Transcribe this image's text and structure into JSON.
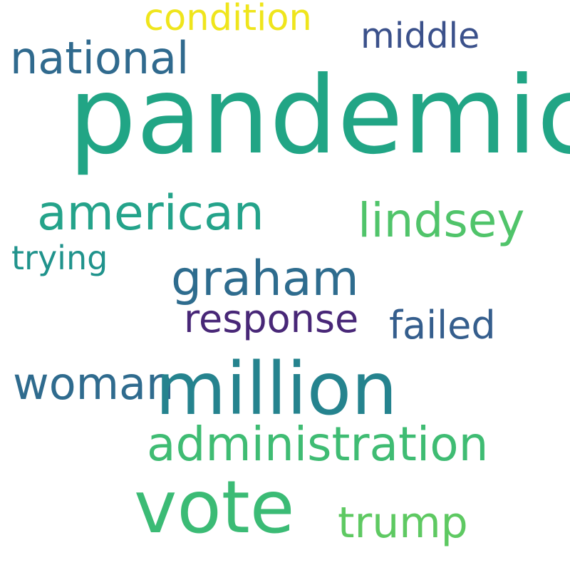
{
  "words": {
    "pandemic": "pandemic",
    "million": "million",
    "vote": "vote",
    "administration": "administration",
    "american": "american",
    "graham": "graham",
    "lindsey": "lindsey",
    "national": "national",
    "woman": "woman",
    "response": "response",
    "failed": "failed",
    "trump": "trump",
    "condition": "condition",
    "middle": "middle",
    "trying": "trying"
  },
  "colors": {
    "background": "#ffffff",
    "pandemic": "#21a585",
    "million": "#25838e",
    "vote": "#3bbb75",
    "administration": "#3fbc73",
    "american": "#24a38a",
    "graham": "#2e6c8e",
    "lindsey": "#50c46a",
    "national": "#306a8e",
    "woman": "#2f6b8e",
    "response": "#482777",
    "failed": "#355e8d",
    "trump": "#5ec962",
    "condition": "#efe51c",
    "middle": "#3b518b",
    "trying": "#20938c"
  }
}
